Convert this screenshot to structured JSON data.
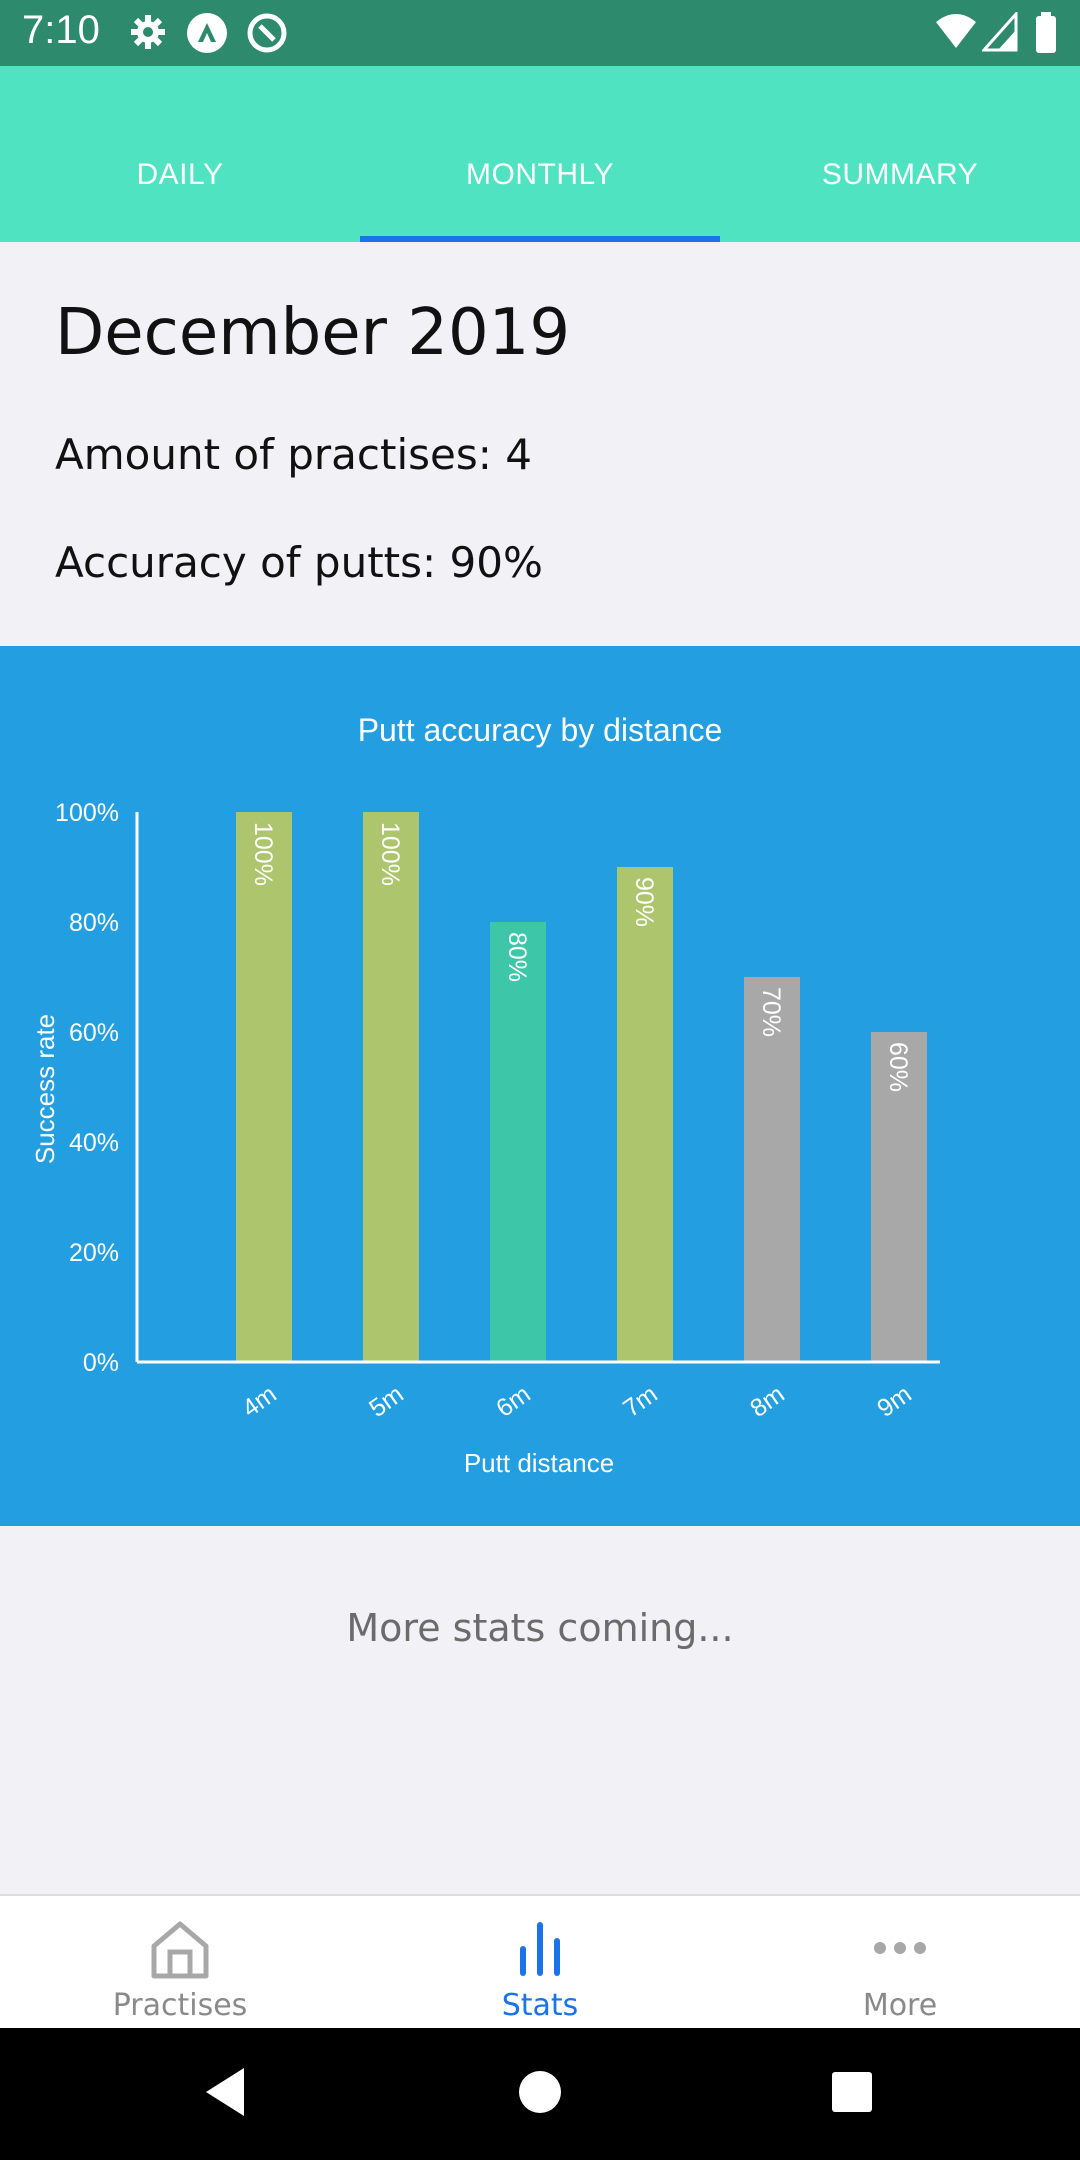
{
  "status_bar": {
    "time": "7:10"
  },
  "tabs": [
    {
      "label": "DAILY"
    },
    {
      "label": "MONTHLY"
    },
    {
      "label": "SUMMARY"
    }
  ],
  "header": {
    "month": "December 2019",
    "practises": "Amount of practises: 4",
    "accuracy": "Accuracy of putts: 90%"
  },
  "chart_data": {
    "type": "bar",
    "title": "Putt accuracy by distance",
    "xlabel": "Putt distance",
    "ylabel": "Success rate",
    "categories": [
      "4m",
      "5m",
      "6m",
      "7m",
      "8m",
      "9m"
    ],
    "values": [
      100,
      100,
      80,
      90,
      70,
      60
    ],
    "data_labels": [
      "100%",
      "100%",
      "80%",
      "90%",
      "70%",
      "60%"
    ],
    "bar_colors": [
      "#adc66e",
      "#adc66e",
      "#3ec6a9",
      "#adc66e",
      "#a8a8a8",
      "#a8a8a8"
    ],
    "ylim": [
      0,
      100
    ],
    "yticks": [
      "0%",
      "20%",
      "40%",
      "60%",
      "80%",
      "100%"
    ],
    "grid": false,
    "background": "#239ee0"
  },
  "footer": {
    "more_text": "More stats coming..."
  },
  "bottom_nav": [
    {
      "label": "Practises",
      "icon": "home-icon"
    },
    {
      "label": "Stats",
      "icon": "bar-chart-icon"
    },
    {
      "label": "More",
      "icon": "more-dots-icon"
    }
  ],
  "colors": {
    "accent": "#1a73e8",
    "tabbar": "#50e3c2",
    "statusbar": "#2e8a6c"
  }
}
